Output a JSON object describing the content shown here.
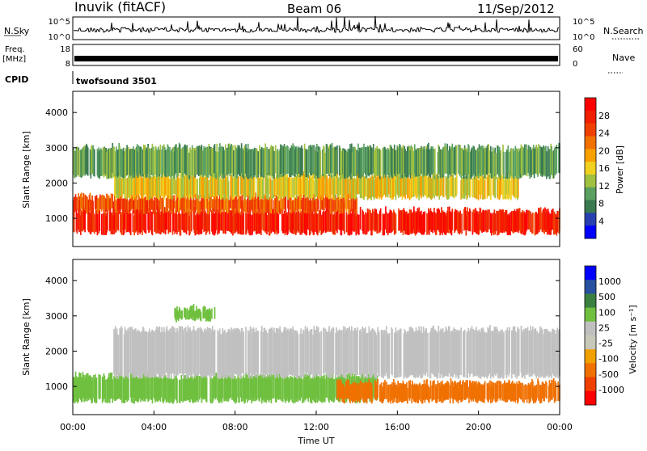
{
  "header": {
    "station": "Inuvik (fitACF)",
    "beam": "Beam 06",
    "date": "11/Sep/2012"
  },
  "top_panels": {
    "nsky_label": "N.Sky",
    "nsky_ticks": [
      "10^5",
      "10^0"
    ],
    "nsearch_label": "N.Search",
    "nsearch_ticks": [
      "10^5",
      "10^0"
    ],
    "freq_label_1": "Freq.",
    "freq_label_2": "[MHz]",
    "freq_ticks": [
      "18",
      "8"
    ],
    "nave_label": "Nave",
    "nave_ticks": [
      "60",
      "0"
    ],
    "cpid_label": "CPID",
    "cpid_value": "twofsound 3501"
  },
  "colors": {
    "power_scale": [
      "#0000ff",
      "#2840b0",
      "#3a7a50",
      "#5aa060",
      "#a0c040",
      "#f0d020",
      "#f8a000",
      "#f07000",
      "#f04000",
      "#f02000",
      "#ff0000"
    ],
    "velocity_scale": [
      "#0000ff",
      "#2850a0",
      "#3a8040",
      "#70c040",
      "#c0c0c0",
      "#c8c8b8",
      "#f0a000",
      "#f07000",
      "#f04000",
      "#ff0000"
    ],
    "missing": "#ffffff"
  },
  "chart_data": [
    {
      "type": "heatmap",
      "name": "power",
      "ylabel": "Slant Range [km]",
      "yticks": [
        "1000",
        "2000",
        "3000",
        "4000"
      ],
      "ylim": [
        200,
        4600
      ],
      "xlim": [
        "00:00",
        "24:00"
      ],
      "colorbar_label": "Power [dB]",
      "colorbar_ticks": [
        "4",
        "8",
        "12",
        "16",
        "20",
        "24",
        "28"
      ],
      "colorbar_range": [
        0,
        32
      ],
      "bands": [
        {
          "t0": 0,
          "t1": 24,
          "r0": 600,
          "r1": 1200,
          "value": 28
        },
        {
          "t0": 0,
          "t1": 14,
          "r0": 1200,
          "r1": 1600,
          "value": 24
        },
        {
          "t0": 2,
          "t1": 22,
          "r0": 1600,
          "r1": 2200,
          "value": 16
        },
        {
          "t0": 0,
          "t1": 24,
          "r0": 2200,
          "r1": 3000,
          "value": 10
        }
      ]
    },
    {
      "type": "heatmap",
      "name": "velocity",
      "xlabel": "Time UT",
      "ylabel": "Slant Range [km]",
      "yticks": [
        "1000",
        "2000",
        "3000",
        "4000"
      ],
      "ylim": [
        200,
        4600
      ],
      "xticks": [
        "00:00",
        "04:00",
        "08:00",
        "12:00",
        "16:00",
        "20:00",
        "00:00"
      ],
      "xlim": [
        "00:00",
        "24:00"
      ],
      "colorbar_label": "Velocity [m s⁻¹]",
      "colorbar_ticks": [
        "1000",
        "500",
        "100",
        "25",
        "-25",
        "-100",
        "-500",
        "-1000"
      ],
      "bands": [
        {
          "t0": 0,
          "t1": 15,
          "r0": 600,
          "r1": 1300,
          "value": 100
        },
        {
          "t0": 13,
          "t1": 24,
          "r0": 600,
          "r1": 1100,
          "value": -500
        },
        {
          "t0": 2,
          "t1": 24,
          "r0": 1300,
          "r1": 2600,
          "value": 0
        },
        {
          "t0": 5,
          "t1": 7,
          "r0": 2900,
          "r1": 3200,
          "value": 100
        }
      ]
    }
  ]
}
